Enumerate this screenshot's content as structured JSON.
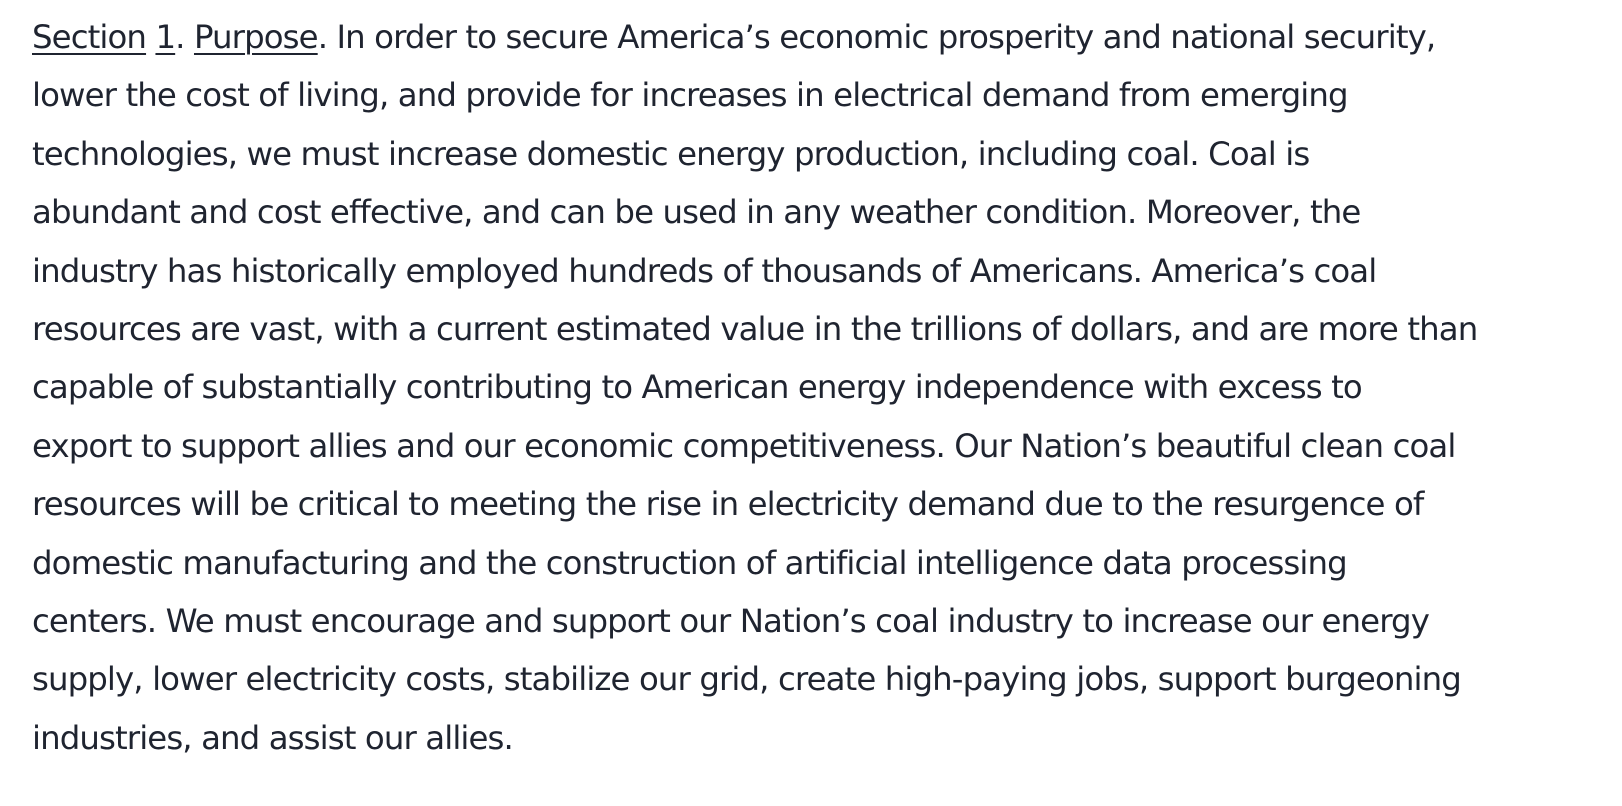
{
  "heading": {
    "section_word": "Section",
    "section_number": "1",
    "period": ".",
    "title": "Purpose"
  },
  "lines": [
    ". In order to secure America’s economic prosperity and national security,",
    "lower the cost of living, and provide for increases in electrical demand from emerging",
    "technologies, we must increase domestic energy production, including coal. Coal is",
    "abundant and cost effective, and can be used in any weather condition. Moreover, the",
    "industry has historically employed hundreds of thousands of Americans. America’s coal",
    "resources are vast, with a current estimated value in the trillions of dollars, and are more than",
    "capable of substantially contributing to American energy independence with excess to",
    "export to support allies and our economic competitiveness. Our Nation’s beautiful clean coal",
    "resources will be critical to meeting the rise in electricity demand due to the resurgence of",
    "domestic manufacturing and the construction of artificial intelligence data processing",
    "centers. We must encourage and support our Nation’s coal industry to increase our energy",
    "supply, lower electricity costs, stabilize our grid, create high-paying jobs, support burgeoning",
    "industries, and assist our allies."
  ]
}
